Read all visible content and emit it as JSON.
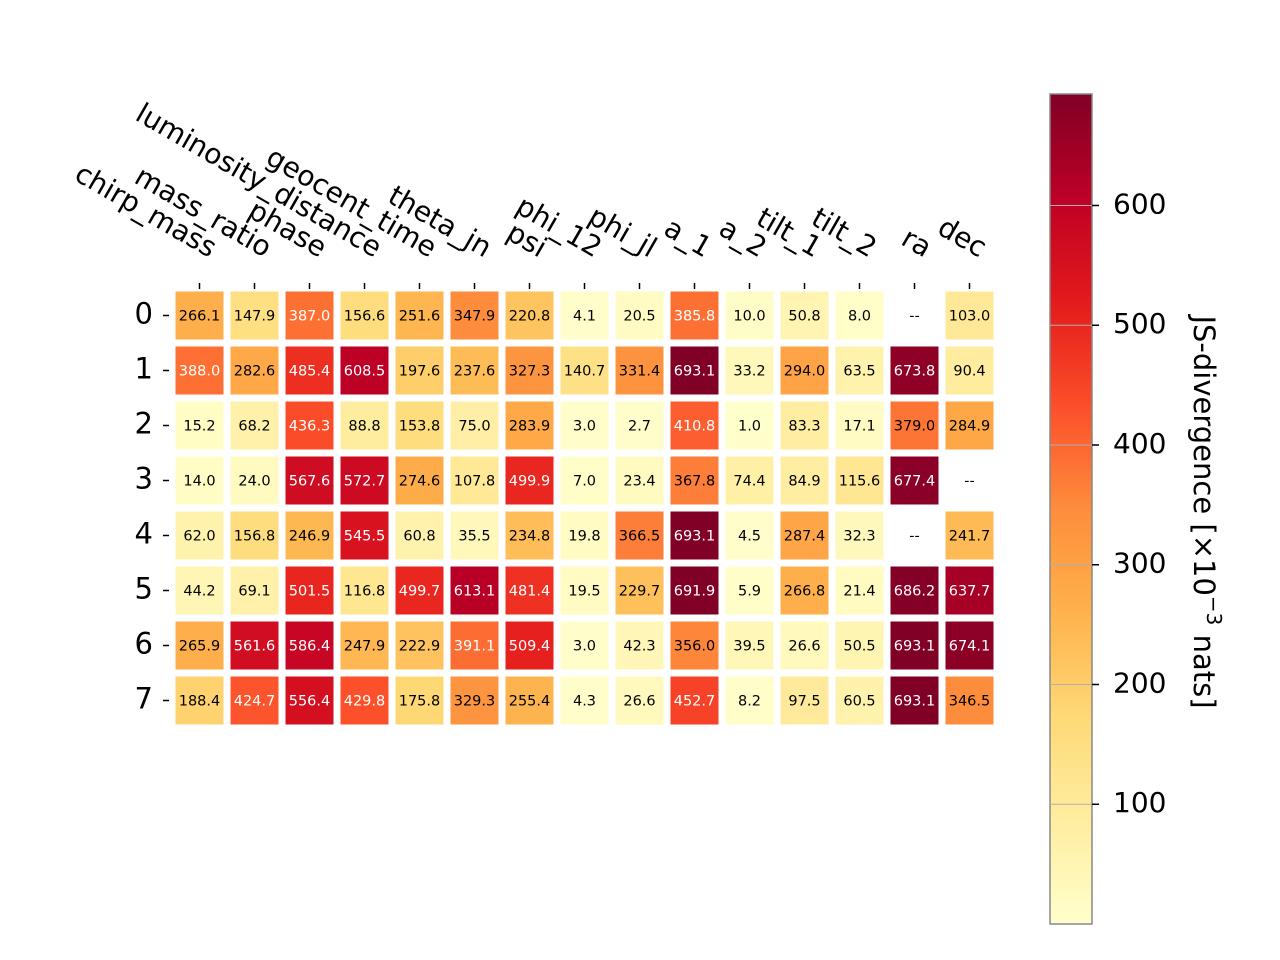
{
  "chart_data": {
    "type": "heatmap",
    "title": "",
    "columns": [
      "chirp_mass",
      "mass_ratio",
      "phase",
      "luminosity_distance",
      "geocent_time",
      "theta_jn",
      "psi",
      "phi_12",
      "phi_jl",
      "a_1",
      "a_2",
      "tilt_1",
      "tilt_2",
      "ra",
      "dec"
    ],
    "rows": [
      "0",
      "1",
      "2",
      "3",
      "4",
      "5",
      "6",
      "7"
    ],
    "values": [
      [
        266.1,
        147.9,
        387.0,
        156.6,
        251.6,
        347.9,
        220.8,
        4.1,
        20.5,
        385.8,
        10.0,
        50.8,
        8.0,
        null,
        103.0
      ],
      [
        388.0,
        282.6,
        485.4,
        608.5,
        197.6,
        237.6,
        327.3,
        140.7,
        331.4,
        693.1,
        33.2,
        294.0,
        63.5,
        673.8,
        90.4
      ],
      [
        15.2,
        68.2,
        436.3,
        88.8,
        153.8,
        75.0,
        283.9,
        3.0,
        2.7,
        410.8,
        1.0,
        83.3,
        17.1,
        379.0,
        284.9
      ],
      [
        14.0,
        24.0,
        567.6,
        572.7,
        274.6,
        107.8,
        499.9,
        7.0,
        23.4,
        367.8,
        74.4,
        84.9,
        115.6,
        677.4,
        null
      ],
      [
        62.0,
        156.8,
        246.9,
        545.5,
        60.8,
        35.5,
        234.8,
        19.8,
        366.5,
        693.1,
        4.5,
        287.4,
        32.3,
        null,
        241.7
      ],
      [
        44.2,
        69.1,
        501.5,
        116.8,
        499.7,
        613.1,
        481.4,
        19.5,
        229.7,
        691.9,
        5.9,
        266.8,
        21.4,
        686.2,
        637.7
      ],
      [
        265.9,
        561.6,
        586.4,
        247.9,
        222.9,
        391.1,
        509.4,
        3.0,
        42.3,
        356.0,
        39.5,
        26.6,
        50.5,
        693.1,
        674.1
      ],
      [
        188.4,
        424.7,
        556.4,
        429.8,
        175.8,
        329.3,
        255.4,
        4.3,
        26.6,
        452.7,
        8.2,
        97.5,
        60.5,
        693.1,
        346.5
      ]
    ],
    "missing_label": "--",
    "colormap": "YlOrRd",
    "vmin": 0,
    "vmax": 693.1,
    "colorbar": {
      "label_main": "JS-divergence [×10",
      "label_exp": "−3",
      "label_tail": " nats]",
      "ticks": [
        100,
        200,
        300,
        400,
        500,
        600
      ],
      "tick_labels": [
        "100",
        "200",
        "300",
        "400",
        "500",
        "600"
      ],
      "grid": true
    },
    "colors": {
      "low": "#ffffcc",
      "high": "#800026",
      "light_text": "#ffffff",
      "dark_text": "#000000",
      "missing_cell": "#ffffff"
    }
  }
}
